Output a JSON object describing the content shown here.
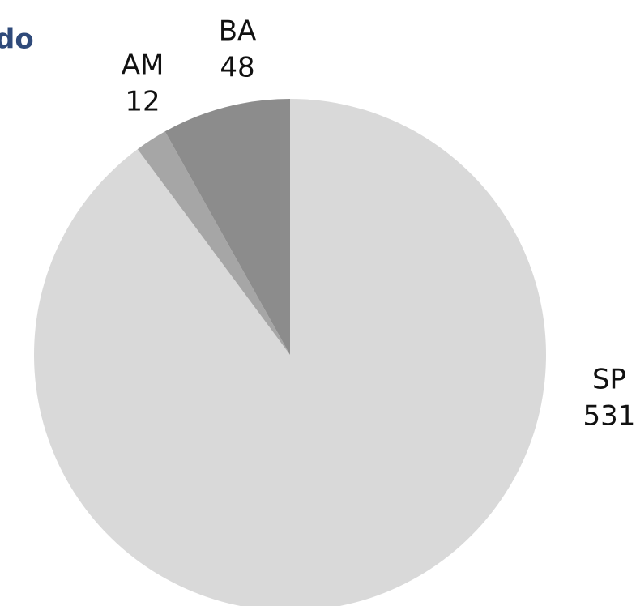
{
  "chart_data": {
    "type": "pie",
    "title": "do",
    "categories": [
      "SP",
      "AM",
      "BA"
    ],
    "values": [
      531,
      12,
      48
    ],
    "colors": [
      "#d9d9d9",
      "#a6a6a6",
      "#8c8c8c"
    ],
    "start_angle": 0,
    "direction": "clockwise"
  }
}
